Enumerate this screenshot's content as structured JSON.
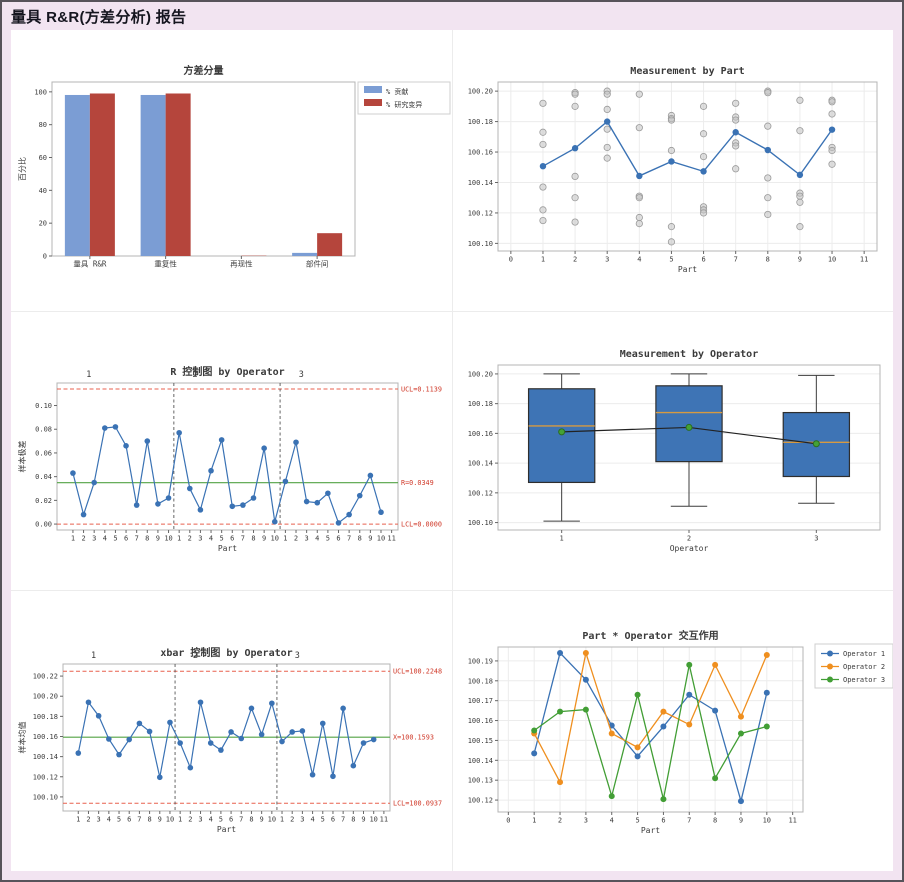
{
  "page": {
    "title": "量具 R&R(方差分析)  报告"
  },
  "chart_data": [
    {
      "id": "variance-components",
      "type": "bar",
      "title": "方差分量",
      "ylabel": "百分比",
      "categories": [
        "量具 R&R",
        "重复性",
        "再现性",
        "部件间"
      ],
      "series": [
        {
          "name": "% 贡献",
          "color": "#7b9dd4",
          "values": [
            98.1,
            98.1,
            0,
            1.9
          ]
        },
        {
          "name": "% 研究变异",
          "color": "#b5453c",
          "values": [
            99.0,
            99.0,
            0.2,
            13.9
          ]
        }
      ],
      "xlim": [
        0,
        4
      ],
      "ylim": [
        0,
        106
      ],
      "xticks": [
        0.5,
        1.5,
        2.5,
        3.5
      ],
      "xtick_labels": [
        "量具 R&R",
        "重复性",
        "再现性",
        "部件间"
      ],
      "yticks": [
        0,
        20,
        40,
        60,
        80,
        100
      ],
      "ytick_labels": [
        "0",
        "20",
        "40",
        "60",
        "80",
        "100"
      ],
      "legend_position": "right-top"
    },
    {
      "id": "measurement-by-part",
      "type": "scatterline",
      "title": "Measurement by Part",
      "xlabel": "Part",
      "xlim": [
        -0.4,
        11.4
      ],
      "ylim": [
        100.095,
        100.206
      ],
      "xticks": [
        0,
        1,
        2,
        3,
        4,
        5,
        6,
        7,
        8,
        9,
        10,
        11
      ],
      "xtick_labels": [
        "0",
        "1",
        "2",
        "3",
        "4",
        "5",
        "6",
        "7",
        "8",
        "9",
        "10",
        "11"
      ],
      "yticks": [
        100.1,
        100.12,
        100.14,
        100.16,
        100.18,
        100.2
      ],
      "ytick_labels": [
        "100.10",
        "100.12",
        "100.14",
        "100.16",
        "100.18",
        "100.20"
      ],
      "grid": "both",
      "point_color": "#c3c3c3",
      "line_color": "#3a72b4",
      "points": [
        [
          100.192,
          100.173,
          100.165,
          100.137,
          100.122,
          100.115
        ],
        [
          100.199,
          100.198,
          100.19,
          100.144,
          100.13,
          100.114
        ],
        [
          100.2,
          100.198,
          100.188,
          100.175,
          100.163,
          100.156
        ],
        [
          100.198,
          100.176,
          100.131,
          100.13,
          100.117,
          100.113
        ],
        [
          100.184,
          100.182,
          100.181,
          100.161,
          100.111,
          100.101
        ],
        [
          100.19,
          100.172,
          100.157,
          100.124,
          100.122,
          100.12
        ],
        [
          100.192,
          100.183,
          100.181,
          100.166,
          100.164,
          100.149
        ],
        [
          100.2,
          100.199,
          100.177,
          100.143,
          100.13,
          100.119
        ],
        [
          100.194,
          100.174,
          100.133,
          100.131,
          100.127,
          100.111
        ],
        [
          100.194,
          100.193,
          100.185,
          100.163,
          100.161,
          100.152
        ]
      ],
      "means": [
        100.1507,
        100.1625,
        100.18,
        100.1443,
        100.1538,
        100.1473,
        100.173,
        100.1613,
        100.145,
        100.1747
      ]
    },
    {
      "id": "r-control-chart",
      "type": "control",
      "title": "R 控制图 by Operator",
      "xlabel": "Part",
      "ylabel": "样本极差",
      "xlim": [
        -0.5,
        31.6
      ],
      "ylim": [
        -0.005,
        0.119
      ],
      "xticks": [
        1,
        2,
        3,
        4,
        5,
        6,
        7,
        8,
        9,
        10,
        11,
        12,
        13,
        14,
        15,
        16,
        17,
        18,
        19,
        20,
        21,
        22,
        23,
        24,
        25,
        26,
        27,
        28,
        29,
        30,
        31
      ],
      "xtick_labels": [
        "1",
        "2",
        "3",
        "4",
        "5",
        "6",
        "7",
        "8",
        "9",
        "10",
        "1",
        "2",
        "3",
        "4",
        "5",
        "6",
        "7",
        "8",
        "9",
        "10",
        "1",
        "2",
        "3",
        "4",
        "5",
        "6",
        "7",
        "8",
        "9",
        "10",
        "11"
      ],
      "yticks": [
        0,
        0.02,
        0.04,
        0.06,
        0.08,
        0.1
      ],
      "ytick_labels": [
        "0.00",
        "0.02",
        "0.04",
        "0.06",
        "0.08",
        "0.10"
      ],
      "values": [
        0.043,
        0.008,
        0.035,
        0.081,
        0.082,
        0.066,
        0.016,
        0.07,
        0.017,
        0.022,
        0.077,
        0.03,
        0.012,
        0.045,
        0.071,
        0.015,
        0.016,
        0.022,
        0.064,
        0.002,
        0.036,
        0.069,
        0.019,
        0.018,
        0.026,
        0.001,
        0.008,
        0.024,
        0.041,
        0.01
      ],
      "ucl": 0.1139,
      "center": 0.0349,
      "lcl": 0.0,
      "ucl_label": "UCL=0.1139",
      "center_label": "R=0.0349",
      "lcl_label": "LCL=0.0000",
      "separators": [
        10.5,
        20.5
      ],
      "group_labels": [
        "1",
        "2",
        "3"
      ],
      "group_label_x": [
        2.5,
        12.5,
        22.5
      ],
      "line_color": "#3a72b4",
      "limit_color": "#e8604f",
      "center_color": "#53a344",
      "label_color": "#d03a2a"
    },
    {
      "id": "measurement-by-operator",
      "type": "box",
      "title": "Measurement by Operator",
      "xlabel": "Operator",
      "xlim": [
        0.5,
        3.5
      ],
      "ylim": [
        100.095,
        100.206
      ],
      "xticks": [
        1,
        2,
        3
      ],
      "xtick_labels": [
        "1",
        "2",
        "3"
      ],
      "yticks": [
        100.1,
        100.12,
        100.14,
        100.16,
        100.18,
        100.2
      ],
      "ytick_labels": [
        "100.10",
        "100.12",
        "100.14",
        "100.16",
        "100.18",
        "100.20"
      ],
      "grid": "h",
      "box_fill": "#3e74b5",
      "median_color": "#d69a42",
      "mean_color": "#44a236",
      "mean_line_color": "#222222",
      "boxes": [
        {
          "whisker_low": 100.101,
          "q1": 100.127,
          "median": 100.165,
          "q3": 100.19,
          "whisker_high": 100.2,
          "mean": 100.161
        },
        {
          "whisker_low": 100.111,
          "q1": 100.141,
          "median": 100.174,
          "q3": 100.192,
          "whisker_high": 100.2,
          "mean": 100.164
        },
        {
          "whisker_low": 100.113,
          "q1": 100.131,
          "median": 100.154,
          "q3": 100.174,
          "whisker_high": 100.199,
          "mean": 100.153
        }
      ]
    },
    {
      "id": "xbar-control-chart",
      "type": "control",
      "title": "xbar 控制图 by Operator",
      "xlabel": "Part",
      "ylabel": "样本均值",
      "xlim": [
        -0.5,
        31.6
      ],
      "ylim": [
        100.086,
        100.232
      ],
      "xticks": [
        1,
        2,
        3,
        4,
        5,
        6,
        7,
        8,
        9,
        10,
        11,
        12,
        13,
        14,
        15,
        16,
        17,
        18,
        19,
        20,
        21,
        22,
        23,
        24,
        25,
        26,
        27,
        28,
        29,
        30,
        31
      ],
      "xtick_labels": [
        "1",
        "2",
        "3",
        "4",
        "5",
        "6",
        "7",
        "8",
        "9",
        "10",
        "1",
        "2",
        "3",
        "4",
        "5",
        "6",
        "7",
        "8",
        "9",
        "10",
        "1",
        "2",
        "3",
        "4",
        "5",
        "6",
        "7",
        "8",
        "9",
        "10",
        "11"
      ],
      "yticks": [
        100.1,
        100.12,
        100.14,
        100.16,
        100.18,
        100.2,
        100.22
      ],
      "ytick_labels": [
        "100.10",
        "100.12",
        "100.14",
        "100.16",
        "100.18",
        "100.20",
        "100.22"
      ],
      "values": [
        100.1435,
        100.194,
        100.1805,
        100.1575,
        100.142,
        100.157,
        100.173,
        100.165,
        100.1195,
        100.174,
        100.1535,
        100.129,
        100.194,
        100.1535,
        100.1465,
        100.1645,
        100.158,
        100.188,
        100.162,
        100.193,
        100.155,
        100.1645,
        100.1655,
        100.122,
        100.173,
        100.1205,
        100.188,
        100.131,
        100.1535,
        100.157
      ],
      "ucl": 100.2248,
      "center": 100.1593,
      "lcl": 100.0937,
      "ucl_label": "UCL=100.2248",
      "center_label": "X=100.1593",
      "lcl_label": "LCL=100.0937",
      "separators": [
        10.5,
        20.5
      ],
      "group_labels": [
        "1",
        "2",
        "3"
      ],
      "group_label_x": [
        2.5,
        12.5,
        22.5
      ],
      "line_color": "#3a72b4",
      "limit_color": "#e8604f",
      "center_color": "#53a344",
      "label_color": "#d03a2a"
    },
    {
      "id": "part-operator-interaction",
      "type": "multiline",
      "title": "Part * Operator 交互作用",
      "xlabel": "Part",
      "xlim": [
        -0.4,
        11.4
      ],
      "ylim": [
        100.114,
        100.197
      ],
      "xticks": [
        0,
        1,
        2,
        3,
        4,
        5,
        6,
        7,
        8,
        9,
        10,
        11
      ],
      "xtick_labels": [
        "0",
        "1",
        "2",
        "3",
        "4",
        "5",
        "6",
        "7",
        "8",
        "9",
        "10",
        "11"
      ],
      "yticks": [
        100.12,
        100.13,
        100.14,
        100.15,
        100.16,
        100.17,
        100.18,
        100.19
      ],
      "ytick_labels": [
        "100.12",
        "100.13",
        "100.14",
        "100.15",
        "100.16",
        "100.17",
        "100.18",
        "100.19"
      ],
      "grid": "both",
      "x": [
        1,
        2,
        3,
        4,
        5,
        6,
        7,
        8,
        9,
        10
      ],
      "series": [
        {
          "name": "Operator 1",
          "color": "#3a72b4",
          "values": [
            100.1435,
            100.194,
            100.1805,
            100.1575,
            100.142,
            100.157,
            100.173,
            100.165,
            100.1195,
            100.174
          ]
        },
        {
          "name": "Operator 2",
          "color": "#ef8f1f",
          "values": [
            100.1535,
            100.129,
            100.194,
            100.1535,
            100.1465,
            100.1645,
            100.158,
            100.188,
            100.162,
            100.193
          ]
        },
        {
          "name": "Operator 3",
          "color": "#429e35",
          "values": [
            100.155,
            100.1645,
            100.1655,
            100.122,
            100.173,
            100.1205,
            100.188,
            100.131,
            100.1535,
            100.157
          ]
        }
      ]
    }
  ]
}
